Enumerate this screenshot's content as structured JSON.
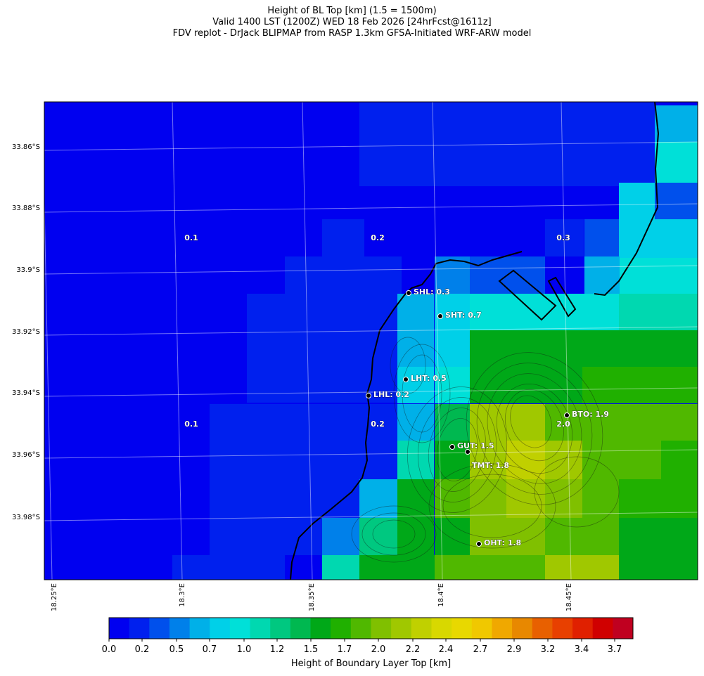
{
  "title": {
    "line1": "Height of BL Top [km] (1.5 = 1500m)",
    "line2": "Valid 1400 LST (1200Z) WED 18 Feb 2026 [24hrFcst@1611z]",
    "line3": "FDV replot - DrJack BLIPMAP from RASP 1.3km GFSA-Initiated WRF-ARW model"
  },
  "map": {
    "lat_labels": [
      "33.86°S",
      "33.88°S",
      "33.9°S",
      "33.92°S",
      "33.94°S",
      "33.96°S",
      "33.98°S"
    ],
    "lon_labels": [
      "18.25°E",
      "18.3°E",
      "18.35°E",
      "18.4°E",
      "18.45°E"
    ],
    "region_labels": [
      "0.1",
      "0.2",
      "0.3",
      "0.1",
      "0.2",
      "2.0"
    ],
    "stations": [
      {
        "label": "SHL: 0.3",
        "lon": 18.378,
        "lat": -33.908
      },
      {
        "label": "SHT: 0.7",
        "lon": 18.4,
        "lat": -33.915
      },
      {
        "label": "LHT: 0.5",
        "lon": 18.376,
        "lat": -33.936
      },
      {
        "label": "LHL: 0.2",
        "lon": 18.361,
        "lat": -33.941
      },
      {
        "label": "BTO: 1.9",
        "lon": 18.449,
        "lat": -33.947
      },
      {
        "label": "GUT: 1.5",
        "lon": 18.405,
        "lat": -33.957
      },
      {
        "label": "TMT: 1.8",
        "lon": 18.411,
        "lat": -33.959
      },
      {
        "label": "OHT: 1.8",
        "lon": 18.415,
        "lat": -33.989
      }
    ]
  },
  "colorbar": {
    "label": "Height of Boundary Layer Top [km]",
    "tick_labels": [
      "0.0",
      "0.2",
      "0.5",
      "0.7",
      "1.0",
      "1.2",
      "1.5",
      "1.7",
      "2.0",
      "2.2",
      "2.4",
      "2.7",
      "2.9",
      "3.2",
      "3.4",
      "3.7"
    ],
    "colors": [
      "#0000f0",
      "#0020ee",
      "#0050ec",
      "#0080ea",
      "#00b0e8",
      "#00d0e8",
      "#00e0d8",
      "#00d8b0",
      "#00c880",
      "#00b850",
      "#00a818",
      "#20b000",
      "#50b800",
      "#80c000",
      "#a0c800",
      "#c0d000",
      "#d8d800",
      "#e8d800",
      "#f0c800",
      "#f0a800",
      "#e88800",
      "#e86000",
      "#e84000",
      "#e02000",
      "#d00000",
      "#c00020"
    ]
  },
  "chart_data": {
    "type": "heatmap",
    "title": "Height of BL Top [km] (1.5 = 1500m)",
    "cell_deg": 0.012,
    "lon_start": 18.245,
    "lat_start": -33.855,
    "note_units": "km",
    "columns": [
      {
        "lon_min": 18.245,
        "lon_max": 18.3,
        "values_top_to_bottom": [
          0.05,
          0.05,
          0.05,
          0.05,
          0.05,
          0.05,
          0.05,
          0.05,
          0.05,
          0.05,
          0.05,
          0.05,
          0.05,
          0.05,
          0.05,
          0.05
        ]
      }
    ],
    "cells": [
      {
        "lon": 18.37,
        "lat": -33.91,
        "v": 0.5
      },
      {
        "lon": 18.382,
        "lat": -33.91,
        "v": 0.6
      },
      {
        "lon": 18.394,
        "lat": -33.922,
        "v": 0.8
      },
      {
        "lon": 18.406,
        "lat": -33.934,
        "v": 1.4
      },
      {
        "lon": 18.418,
        "lat": -33.946,
        "v": 2.1
      },
      {
        "lon": 18.43,
        "lat": -33.958,
        "v": 2.3
      },
      {
        "lon": 18.442,
        "lat": -33.958,
        "v": 2.1
      },
      {
        "lon": 18.454,
        "lat": -33.97,
        "v": 1.9
      },
      {
        "lon": 18.418,
        "lat": -33.994,
        "v": 2.0
      },
      {
        "lon": 18.478,
        "lat": -33.91,
        "v": 0.8
      }
    ]
  }
}
